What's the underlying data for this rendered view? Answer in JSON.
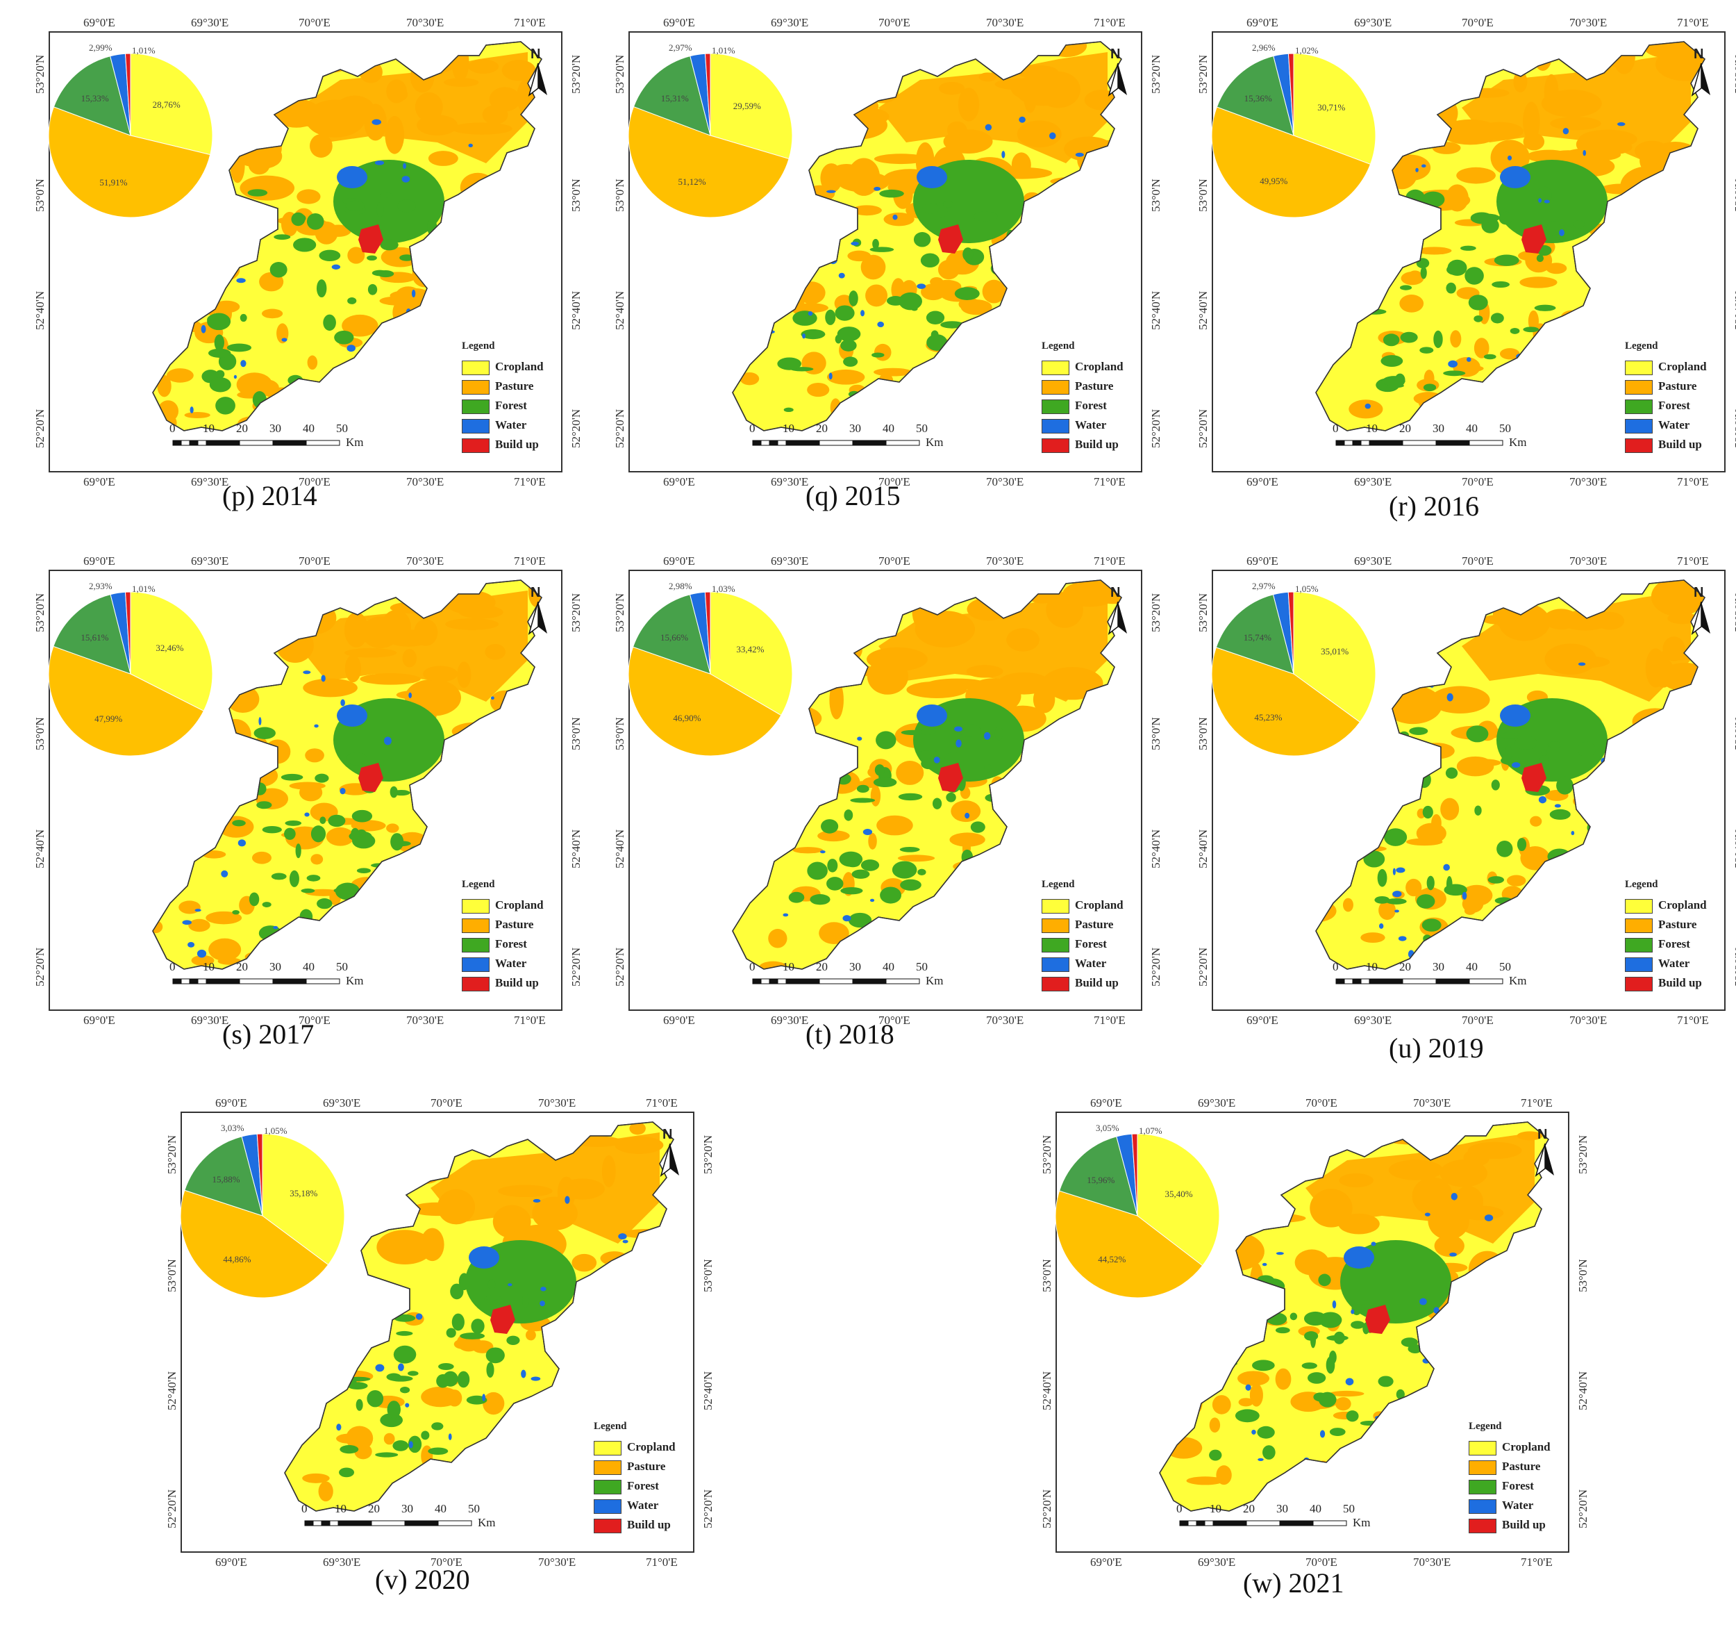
{
  "colors": {
    "cropland": "#ffff3a",
    "pasture": "#ffae00",
    "forest": "#3fa822",
    "water": "#1e6ee0",
    "build_up": "#e11e1e",
    "pie_pasture": "#ffc000",
    "pie_forest": "#47a14a"
  },
  "legend": {
    "title": "Legend",
    "items": [
      {
        "label": "Cropland",
        "key": "cropland"
      },
      {
        "label": "Pasture",
        "key": "pasture"
      },
      {
        "label": "Forest",
        "key": "forest"
      },
      {
        "label": "Water",
        "key": "water"
      },
      {
        "label": "Build up",
        "key": "build_up"
      }
    ]
  },
  "scale_bar": {
    "ticks": [
      "0",
      "10",
      "20",
      "30",
      "40",
      "50"
    ],
    "unit": "Km"
  },
  "north_label": "N",
  "axes": {
    "lon_labels": [
      "69°0'E",
      "69°30'E",
      "70°0'E",
      "70°30'E",
      "71°0'E"
    ],
    "lat_labels": [
      "53°20'N",
      "53°0'N",
      "52°40'N",
      "52°20'N"
    ]
  },
  "panels": [
    {
      "caption": "(p) 2014",
      "pie": {
        "cropland": "28,76%",
        "pasture": "51,91%",
        "forest": "15,33%",
        "water": "2,99%",
        "build_up": "1,01%"
      }
    },
    {
      "caption": "(q) 2015",
      "pie": {
        "cropland": "29,59%",
        "pasture": "51,12%",
        "forest": "15,31%",
        "water": "2,97%",
        "build_up": "1,01%"
      }
    },
    {
      "caption": "(r) 2016",
      "pie": {
        "cropland": "30,71%",
        "pasture": "49,95%",
        "forest": "15,36%",
        "water": "2,96%",
        "build_up": "1,02%"
      }
    },
    {
      "caption": "(s) 2017",
      "pie": {
        "cropland": "32,46%",
        "pasture": "47,99%",
        "forest": "15,61%",
        "water": "2,93%",
        "build_up": "1,01%"
      }
    },
    {
      "caption": "(t) 2018",
      "pie": {
        "cropland": "33,42%",
        "pasture": "46,90%",
        "forest": "15,66%",
        "water": "2,98%",
        "build_up": "1,03%"
      }
    },
    {
      "caption": "(u) 2019",
      "pie": {
        "cropland": "35,01%",
        "pasture": "45,23%",
        "forest": "15,74%",
        "water": "2,97%",
        "build_up": "1,05%"
      }
    },
    {
      "caption": "(v) 2020",
      "pie": {
        "cropland": "35,18%",
        "pasture": "44,86%",
        "forest": "15,88%",
        "water": "3,03%",
        "build_up": "1,05%"
      }
    },
    {
      "caption": "(w) 2021",
      "pie": {
        "cropland": "35,40%",
        "pasture": "44,52%",
        "forest": "15,96%",
        "water": "3,05%",
        "build_up": "1,07%"
      }
    }
  ]
}
